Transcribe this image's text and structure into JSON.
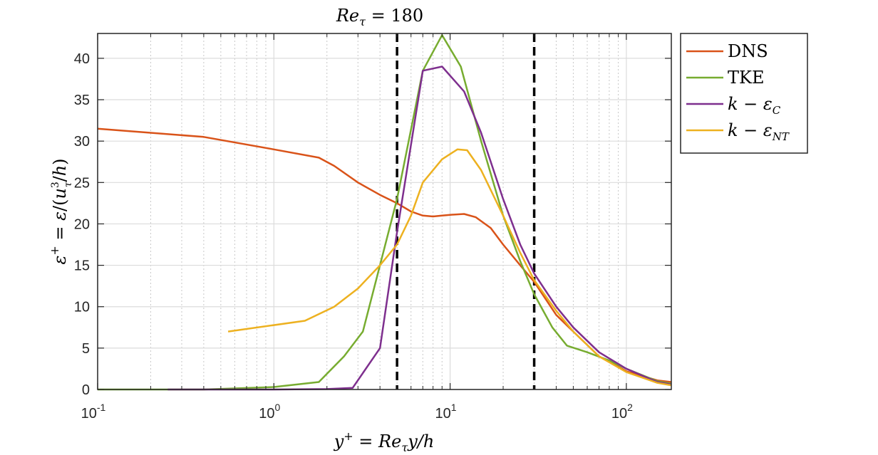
{
  "chart_data": {
    "type": "line",
    "title": "Re_τ = 180",
    "xlabel": "y⁺ = Re_τ y/h",
    "ylabel": "ε⁺ = ε/(u_τ³/h)",
    "xscale": "log",
    "xlim": [
      0.1,
      180
    ],
    "ylim": [
      0,
      43
    ],
    "x_ticks": [
      0.1,
      1,
      10,
      100
    ],
    "x_tick_labels": [
      "10",
      "10",
      "10",
      "10"
    ],
    "x_tick_exponents": [
      "-1",
      "0",
      "1",
      "2"
    ],
    "y_ticks": [
      0,
      5,
      10,
      15,
      20,
      25,
      30,
      35,
      40
    ],
    "y_tick_labels": [
      "0",
      "5",
      "10",
      "15",
      "20",
      "25",
      "30",
      "35",
      "40"
    ],
    "grid": true,
    "legend_position": "outside-right",
    "vertical_reference_lines": [
      5,
      30
    ],
    "series": [
      {
        "name": "DNS",
        "color": "#D95319",
        "x": [
          0.1,
          0.4,
          1,
          1.8,
          2.2,
          3,
          4,
          5,
          6,
          7,
          8,
          9,
          10,
          12,
          14,
          17,
          20,
          25,
          30,
          40,
          50,
          70,
          100,
          150,
          180
        ],
        "y": [
          31.5,
          30.5,
          29,
          28,
          27,
          25,
          23.5,
          22.5,
          21.5,
          21,
          20.9,
          21,
          21.1,
          21.2,
          20.8,
          19.5,
          17.5,
          15,
          13,
          9,
          7,
          4,
          2.2,
          1.1,
          0.9
        ]
      },
      {
        "name": "TKE",
        "color": "#77AC30",
        "x": [
          0.1,
          0.4,
          1,
          1.8,
          2.5,
          3.2,
          5,
          7,
          9,
          11.5,
          15,
          20,
          25,
          30,
          38,
          46,
          60,
          80,
          100,
          150,
          180
        ],
        "y": [
          0,
          0,
          0.3,
          0.9,
          4,
          7,
          23,
          38.5,
          42.8,
          39,
          30,
          21,
          15.5,
          11.5,
          7.5,
          5.3,
          4.5,
          3.5,
          2.5,
          1,
          0.7
        ]
      },
      {
        "name": "k − ε_C",
        "color": "#7E2F8E",
        "x": [
          0.25,
          1,
          2,
          2.8,
          4,
          5,
          7,
          9,
          12,
          15,
          20,
          25,
          30,
          40,
          50,
          70,
          100,
          150,
          180
        ],
        "y": [
          0,
          0,
          0.05,
          0.2,
          5,
          19,
          38.5,
          39,
          36,
          31,
          23,
          17.5,
          14,
          10,
          7.5,
          4.5,
          2.5,
          0.9,
          0.6
        ]
      },
      {
        "name": "k − ε_NT",
        "color": "#EDB120",
        "x": [
          0.55,
          1.5,
          2.2,
          3,
          4,
          5,
          6,
          7,
          9,
          11,
          12.5,
          15,
          20,
          25,
          30,
          40,
          50,
          70,
          100,
          150,
          180
        ],
        "y": [
          7,
          8.3,
          10,
          12.2,
          15,
          17.5,
          21,
          25,
          27.8,
          29,
          28.9,
          26.5,
          21,
          16.5,
          13.2,
          9.5,
          7,
          4,
          2.1,
          0.8,
          0.5
        ]
      }
    ]
  }
}
